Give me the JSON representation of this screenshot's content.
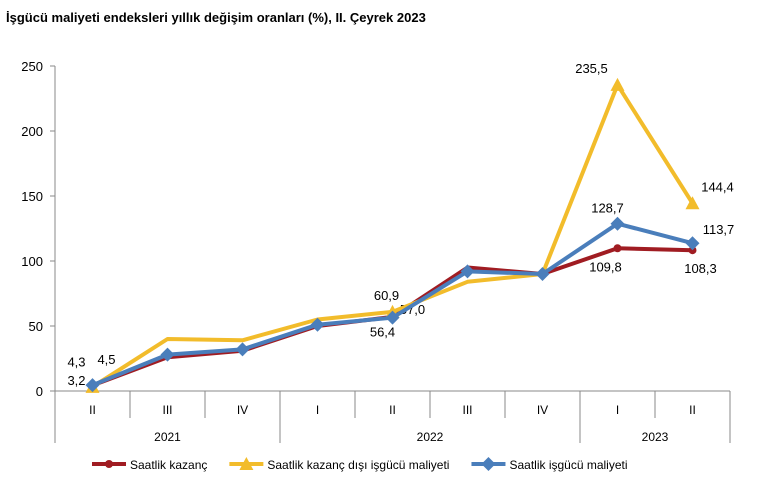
{
  "chart_data": {
    "type": "line",
    "title": "İşgücü maliyeti endeksleri yıllık değişim oranları (%), II. Çeyrek 2023",
    "categories": [
      "II",
      "III",
      "IV",
      "I",
      "II",
      "III",
      "IV",
      "I",
      "II"
    ],
    "years": [
      {
        "label": "2021",
        "from": 0,
        "to": 2
      },
      {
        "label": "2022",
        "from": 3,
        "to": 6
      },
      {
        "label": "2023",
        "from": 7,
        "to": 8
      }
    ],
    "ylim": [
      0,
      250
    ],
    "yticks": [
      0,
      50,
      100,
      150,
      200,
      250
    ],
    "grid": false,
    "legend_position": "bottom",
    "series": [
      {
        "name": "Saatlik kazanç",
        "color": "#a01c22",
        "marker": "line",
        "values": [
          4.3,
          26,
          31,
          50,
          57.0,
          95,
          90,
          109.8,
          108.3
        ],
        "labels": {
          "0": "4,3",
          "4": "57,0",
          "7": "109,8",
          "8": "108,3"
        }
      },
      {
        "name": "Saatlik kazanç dışı işgücü maliyeti",
        "color": "#f2bc2b",
        "marker": "triangle",
        "values": [
          3.2,
          40,
          39,
          55,
          60.9,
          84,
          90,
          235.5,
          144.4
        ],
        "labels": {
          "0": "3,2",
          "4": "60,9",
          "7": "235,5",
          "8": "144,4"
        }
      },
      {
        "name": "Saatlik işgücü maliyeti",
        "color": "#4a7ebb",
        "marker": "diamond",
        "values": [
          4.5,
          28,
          32,
          51,
          56.4,
          92,
          90,
          128.7,
          113.7
        ],
        "labels": {
          "0": "4,5",
          "4": "56,4",
          "7": "128,7",
          "8": "113,7"
        }
      }
    ]
  }
}
